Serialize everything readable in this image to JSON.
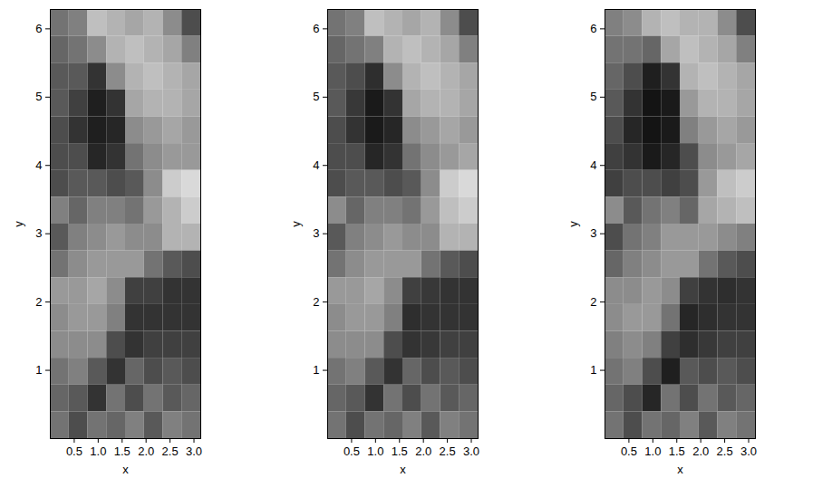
{
  "chart_data": [
    {
      "type": "heatmap",
      "xlabel": "x",
      "ylabel": "y",
      "xlim": [
        0,
        3.1416
      ],
      "ylim": [
        0,
        6.2832
      ],
      "xticks": [
        0.5,
        {
          "value": 1,
          "label": "1.0"
        },
        1.5,
        {
          "value": 2,
          "label": "2.0"
        },
        2.5,
        {
          "value": 3,
          "label": "3.0"
        }
      ],
      "yticks": [
        1,
        2,
        3,
        4,
        5,
        6
      ],
      "x_bins": [
        0,
        0.3927,
        0.7854,
        1.1781,
        1.5708,
        1.9635,
        2.3562,
        2.7489,
        3.1416
      ],
      "y_bins": [
        0,
        0.3927,
        0.7854,
        1.1781,
        1.5708,
        1.9635,
        2.3562,
        2.7489,
        3.1416,
        3.5343,
        3.927,
        4.3197,
        4.7124,
        5.1051,
        5.4978,
        5.8905,
        6.2832
      ],
      "zlim": [
        0,
        1
      ],
      "cells": [
        [
          0.45,
          0.5,
          0.75,
          0.7,
          0.65,
          0.7,
          0.55,
          0.3
        ],
        [
          0.4,
          0.45,
          0.55,
          0.7,
          0.75,
          0.7,
          0.65,
          0.5
        ],
        [
          0.35,
          0.35,
          0.2,
          0.55,
          0.7,
          0.75,
          0.7,
          0.65
        ],
        [
          0.35,
          0.25,
          0.12,
          0.2,
          0.65,
          0.7,
          0.7,
          0.65
        ],
        [
          0.3,
          0.2,
          0.12,
          0.15,
          0.55,
          0.6,
          0.65,
          0.6
        ],
        [
          0.3,
          0.3,
          0.15,
          0.2,
          0.45,
          0.55,
          0.6,
          0.6
        ],
        [
          0.3,
          0.35,
          0.35,
          0.3,
          0.35,
          0.55,
          0.8,
          0.85
        ],
        [
          0.5,
          0.4,
          0.5,
          0.5,
          0.45,
          0.6,
          0.7,
          0.8
        ],
        [
          0.35,
          0.5,
          0.55,
          0.6,
          0.55,
          0.55,
          0.7,
          0.7
        ],
        [
          0.45,
          0.55,
          0.6,
          0.6,
          0.6,
          0.45,
          0.35,
          0.3
        ],
        [
          0.6,
          0.6,
          0.65,
          0.55,
          0.25,
          0.25,
          0.2,
          0.2
        ],
        [
          0.55,
          0.6,
          0.6,
          0.5,
          0.2,
          0.2,
          0.2,
          0.2
        ],
        [
          0.55,
          0.55,
          0.55,
          0.3,
          0.2,
          0.25,
          0.25,
          0.25
        ],
        [
          0.45,
          0.5,
          0.35,
          0.2,
          0.4,
          0.3,
          0.35,
          0.3
        ],
        [
          0.4,
          0.35,
          0.2,
          0.45,
          0.3,
          0.45,
          0.35,
          0.4
        ],
        [
          0.45,
          0.3,
          0.45,
          0.4,
          0.5,
          0.35,
          0.5,
          0.45
        ]
      ]
    },
    {
      "type": "heatmap",
      "xlabel": "x",
      "ylabel": "y",
      "xlim": [
        0,
        3.1416
      ],
      "ylim": [
        0,
        6.2832
      ],
      "xticks": [
        0.5,
        {
          "value": 1,
          "label": "1.0"
        },
        1.5,
        {
          "value": 2,
          "label": "2.0"
        },
        2.5,
        {
          "value": 3,
          "label": "3.0"
        }
      ],
      "yticks": [
        1,
        2,
        3,
        4,
        5,
        6
      ],
      "x_bins": [
        0,
        0.3927,
        0.7854,
        1.1781,
        1.5708,
        1.9635,
        2.3562,
        2.7489,
        3.1416
      ],
      "y_bins": [
        0,
        0.3927,
        0.7854,
        1.1781,
        1.5708,
        1.9635,
        2.3562,
        2.7489,
        3.1416,
        3.5343,
        3.927,
        4.3197,
        4.7124,
        5.1051,
        5.4978,
        5.8905,
        6.2832
      ],
      "zlim": [
        0,
        1
      ],
      "cells": [
        [
          0.45,
          0.5,
          0.75,
          0.7,
          0.65,
          0.7,
          0.55,
          0.3
        ],
        [
          0.4,
          0.45,
          0.5,
          0.7,
          0.75,
          0.7,
          0.65,
          0.5
        ],
        [
          0.35,
          0.3,
          0.18,
          0.55,
          0.7,
          0.75,
          0.7,
          0.65
        ],
        [
          0.35,
          0.22,
          0.1,
          0.2,
          0.65,
          0.7,
          0.7,
          0.65
        ],
        [
          0.3,
          0.2,
          0.1,
          0.15,
          0.55,
          0.6,
          0.65,
          0.6
        ],
        [
          0.3,
          0.3,
          0.15,
          0.2,
          0.45,
          0.55,
          0.6,
          0.65
        ],
        [
          0.3,
          0.35,
          0.35,
          0.3,
          0.35,
          0.55,
          0.8,
          0.85
        ],
        [
          0.55,
          0.4,
          0.5,
          0.5,
          0.45,
          0.6,
          0.75,
          0.8
        ],
        [
          0.35,
          0.5,
          0.55,
          0.6,
          0.55,
          0.55,
          0.7,
          0.7
        ],
        [
          0.45,
          0.55,
          0.6,
          0.6,
          0.6,
          0.45,
          0.35,
          0.3
        ],
        [
          0.6,
          0.6,
          0.65,
          0.55,
          0.25,
          0.22,
          0.2,
          0.2
        ],
        [
          0.55,
          0.6,
          0.6,
          0.5,
          0.18,
          0.2,
          0.2,
          0.2
        ],
        [
          0.55,
          0.55,
          0.55,
          0.3,
          0.2,
          0.22,
          0.25,
          0.25
        ],
        [
          0.45,
          0.5,
          0.35,
          0.2,
          0.4,
          0.3,
          0.35,
          0.3
        ],
        [
          0.4,
          0.35,
          0.2,
          0.45,
          0.3,
          0.45,
          0.35,
          0.4
        ],
        [
          0.45,
          0.3,
          0.45,
          0.4,
          0.5,
          0.35,
          0.5,
          0.45
        ]
      ]
    },
    {
      "type": "heatmap",
      "xlabel": "x",
      "ylabel": "y",
      "xlim": [
        0,
        3.1416
      ],
      "ylim": [
        0,
        6.2832
      ],
      "xticks": [
        0.5,
        {
          "value": 1,
          "label": "1.0"
        },
        1.5,
        {
          "value": 2,
          "label": "2.0"
        },
        2.5,
        {
          "value": 3,
          "label": "3.0"
        }
      ],
      "yticks": [
        1,
        2,
        3,
        4,
        5,
        6
      ],
      "x_bins": [
        0,
        0.3927,
        0.7854,
        1.1781,
        1.5708,
        1.9635,
        2.3562,
        2.7489,
        3.1416
      ],
      "y_bins": [
        0,
        0.3927,
        0.7854,
        1.1781,
        1.5708,
        1.9635,
        2.3562,
        2.7489,
        3.1416,
        3.5343,
        3.927,
        4.3197,
        4.7124,
        5.1051,
        5.4978,
        5.8905,
        6.2832
      ],
      "zlim": [
        0,
        1
      ],
      "cells": [
        [
          0.5,
          0.55,
          0.7,
          0.75,
          0.7,
          0.7,
          0.55,
          0.3
        ],
        [
          0.45,
          0.45,
          0.4,
          0.65,
          0.75,
          0.7,
          0.65,
          0.5
        ],
        [
          0.4,
          0.3,
          0.12,
          0.2,
          0.7,
          0.75,
          0.7,
          0.65
        ],
        [
          0.35,
          0.2,
          0.08,
          0.1,
          0.6,
          0.7,
          0.7,
          0.65
        ],
        [
          0.3,
          0.15,
          0.08,
          0.1,
          0.5,
          0.6,
          0.65,
          0.6
        ],
        [
          0.25,
          0.2,
          0.1,
          0.15,
          0.3,
          0.55,
          0.6,
          0.65
        ],
        [
          0.25,
          0.3,
          0.3,
          0.25,
          0.3,
          0.6,
          0.75,
          0.8
        ],
        [
          0.55,
          0.35,
          0.45,
          0.5,
          0.4,
          0.65,
          0.7,
          0.75
        ],
        [
          0.3,
          0.45,
          0.5,
          0.6,
          0.6,
          0.6,
          0.55,
          0.5
        ],
        [
          0.4,
          0.5,
          0.55,
          0.6,
          0.6,
          0.45,
          0.35,
          0.3
        ],
        [
          0.55,
          0.55,
          0.6,
          0.55,
          0.25,
          0.2,
          0.18,
          0.2
        ],
        [
          0.55,
          0.6,
          0.6,
          0.45,
          0.15,
          0.18,
          0.2,
          0.2
        ],
        [
          0.5,
          0.55,
          0.5,
          0.25,
          0.18,
          0.22,
          0.25,
          0.25
        ],
        [
          0.45,
          0.5,
          0.3,
          0.12,
          0.35,
          0.3,
          0.35,
          0.3
        ],
        [
          0.4,
          0.3,
          0.15,
          0.45,
          0.3,
          0.45,
          0.35,
          0.4
        ],
        [
          0.45,
          0.3,
          0.45,
          0.4,
          0.5,
          0.35,
          0.5,
          0.45
        ]
      ]
    }
  ]
}
